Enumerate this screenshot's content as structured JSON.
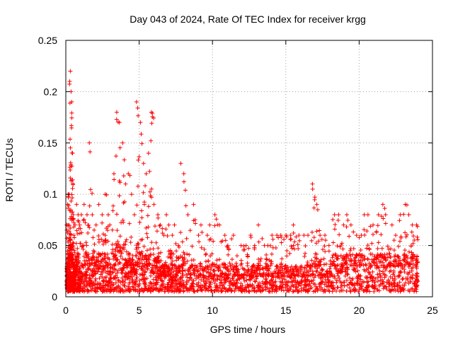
{
  "chart_data": {
    "type": "scatter",
    "title": "Day 043 of 2024, Rate Of TEC Index for receiver krgg",
    "xlabel": "GPS time / hours",
    "ylabel": "ROTI / TECUs",
    "xlim": [
      0,
      25
    ],
    "ylim": [
      0,
      0.25
    ],
    "x_ticks": [
      "0",
      "5",
      "10",
      "15",
      "20",
      "25"
    ],
    "y_ticks": [
      "0",
      "0.05",
      "0.1",
      "0.15",
      "0.2",
      "0.25"
    ],
    "grid": true,
    "legend": "none",
    "marker": "plus",
    "color": "#ff0000",
    "series": [
      {
        "x": [
          0.05,
          0.1,
          0.15,
          0.2,
          0.25,
          0.3,
          0.35,
          0.4,
          0.45,
          0.5,
          0.55,
          0.6,
          0.7,
          0.8,
          0.9,
          1.0,
          1.2,
          1.4,
          1.6,
          1.8,
          2.0,
          2.2,
          2.4,
          2.6,
          2.8,
          3.0,
          3.2,
          3.4,
          3.6,
          3.8,
          4.0,
          4.2,
          4.4,
          4.6,
          4.8,
          5.0,
          5.2,
          5.4,
          5.6,
          5.8,
          6.0,
          6.2,
          6.4,
          6.6,
          6.8,
          7.0,
          7.2,
          7.4,
          7.6,
          7.8,
          8.0,
          8.3,
          8.6,
          8.9,
          9.2,
          9.5,
          9.8,
          10.1,
          10.4,
          10.7,
          11.0,
          11.3,
          11.6,
          11.9,
          12.2,
          12.5,
          12.8,
          13.1,
          13.4,
          13.7,
          14.0,
          14.3,
          14.6,
          14.9,
          15.2,
          15.5,
          15.8,
          16.1,
          16.4,
          16.7,
          17.0,
          17.3,
          17.6,
          17.9,
          18.2,
          18.5,
          18.8,
          19.1,
          19.4,
          19.7,
          20.0,
          20.3,
          20.6,
          20.9,
          21.2,
          21.5,
          21.8,
          22.1,
          22.4,
          22.7,
          23.0,
          23.3,
          23.6,
          23.9
        ],
        "y_max": [
          0.07,
          0.09,
          0.1,
          0.1,
          0.21,
          0.22,
          0.2,
          0.19,
          0.14,
          0.08,
          0.06,
          0.07,
          0.09,
          0.08,
          0.07,
          0.08,
          0.09,
          0.08,
          0.15,
          0.08,
          0.07,
          0.09,
          0.08,
          0.1,
          0.08,
          0.07,
          0.12,
          0.18,
          0.17,
          0.15,
          0.11,
          0.12,
          0.1,
          0.08,
          0.19,
          0.17,
          0.13,
          0.12,
          0.14,
          0.18,
          0.09,
          0.08,
          0.07,
          0.06,
          0.08,
          0.07,
          0.06,
          0.07,
          0.05,
          0.13,
          0.12,
          0.08,
          0.09,
          0.06,
          0.07,
          0.06,
          0.07,
          0.08,
          0.07,
          0.06,
          0.05,
          0.06,
          0.04,
          0.05,
          0.05,
          0.06,
          0.05,
          0.07,
          0.05,
          0.05,
          0.06,
          0.06,
          0.06,
          0.06,
          0.06,
          0.07,
          0.06,
          0.06,
          0.06,
          0.11,
          0.09,
          0.06,
          0.06,
          0.05,
          0.08,
          0.08,
          0.07,
          0.08,
          0.07,
          0.06,
          0.06,
          0.08,
          0.08,
          0.07,
          0.08,
          0.09,
          0.08,
          0.07,
          0.06,
          0.08,
          0.09,
          0.08,
          0.07,
          0.07
        ],
        "y_typ": [
          0.02,
          0.03,
          0.03,
          0.03,
          0.04,
          0.05,
          0.04,
          0.04,
          0.03,
          0.02,
          0.02,
          0.02,
          0.03,
          0.03,
          0.02,
          0.02,
          0.03,
          0.03,
          0.03,
          0.03,
          0.02,
          0.03,
          0.03,
          0.03,
          0.03,
          0.02,
          0.03,
          0.04,
          0.04,
          0.04,
          0.03,
          0.03,
          0.03,
          0.02,
          0.04,
          0.04,
          0.03,
          0.03,
          0.03,
          0.04,
          0.03,
          0.03,
          0.02,
          0.02,
          0.02,
          0.02,
          0.02,
          0.02,
          0.02,
          0.03,
          0.03,
          0.02,
          0.02,
          0.02,
          0.02,
          0.02,
          0.02,
          0.02,
          0.02,
          0.02,
          0.02,
          0.02,
          0.02,
          0.02,
          0.02,
          0.02,
          0.02,
          0.02,
          0.02,
          0.02,
          0.02,
          0.02,
          0.02,
          0.02,
          0.02,
          0.02,
          0.02,
          0.02,
          0.02,
          0.03,
          0.03,
          0.02,
          0.02,
          0.02,
          0.03,
          0.03,
          0.03,
          0.03,
          0.03,
          0.03,
          0.03,
          0.03,
          0.03,
          0.03,
          0.03,
          0.03,
          0.03,
          0.03,
          0.03,
          0.03,
          0.03,
          0.03,
          0.03,
          0.03
        ],
        "y_min": 0.005
      }
    ]
  }
}
